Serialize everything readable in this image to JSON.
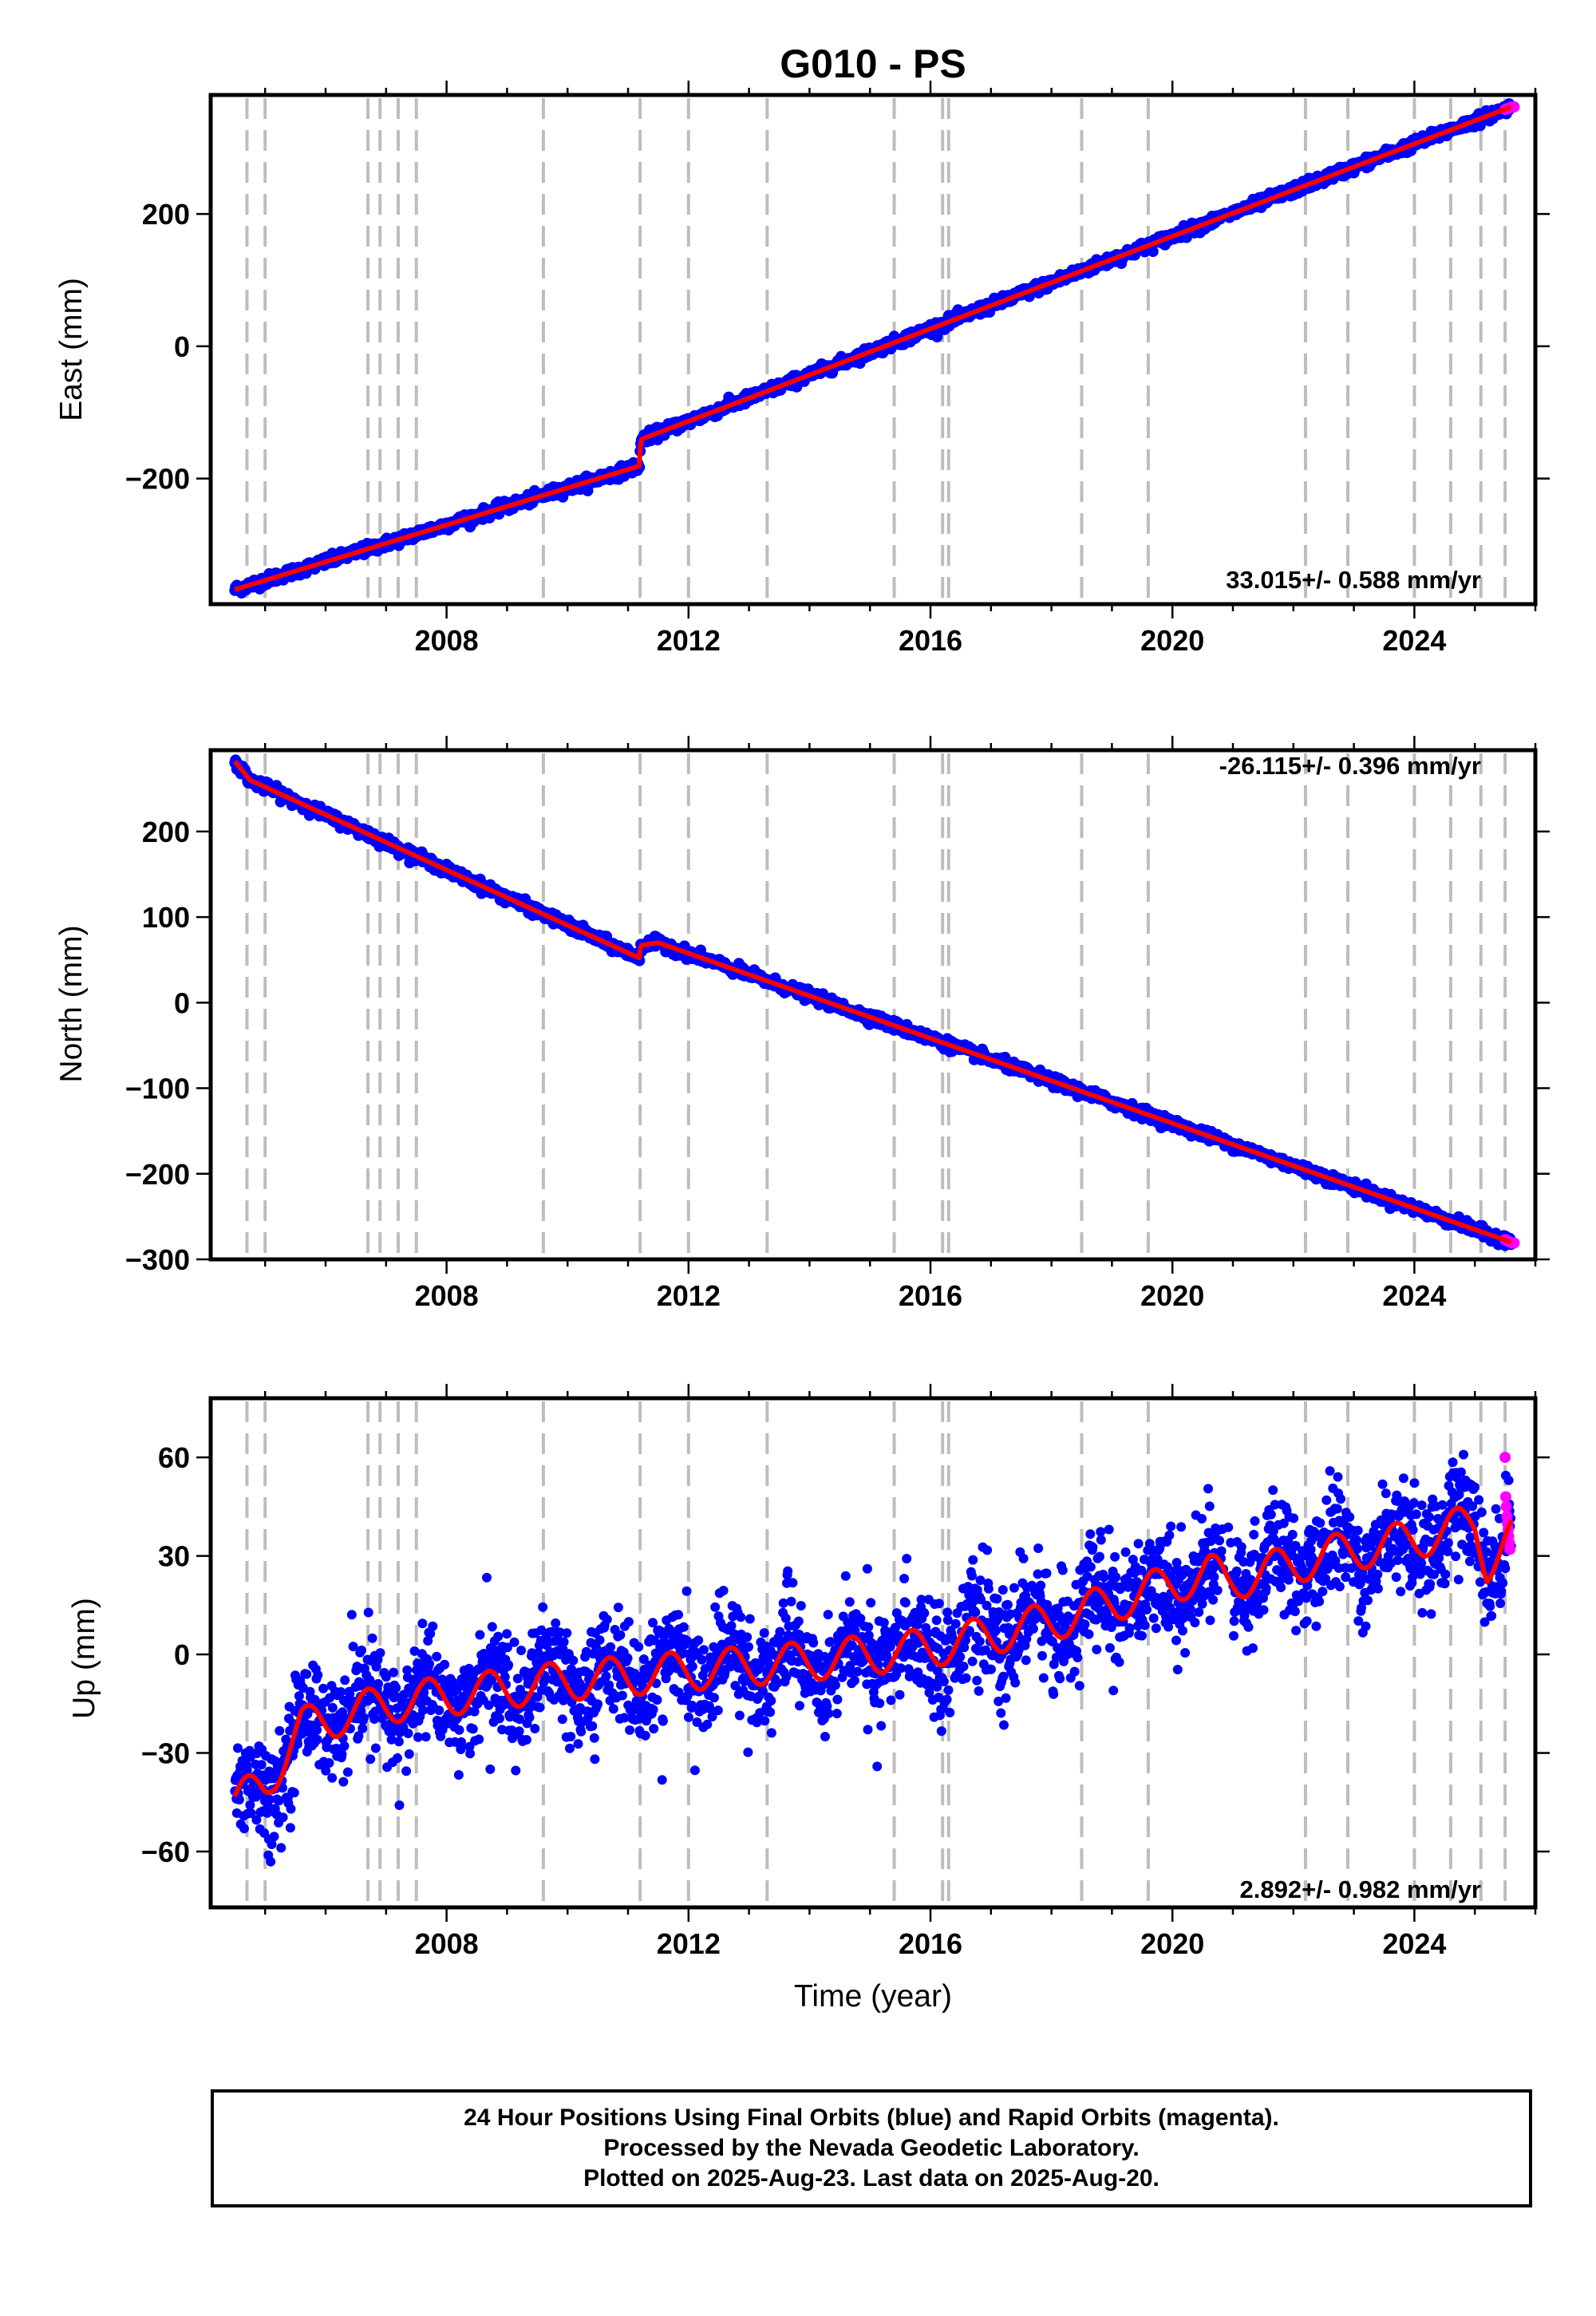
{
  "title": "G010 - PS",
  "colors": {
    "final_orbits": "#0000ff",
    "rapid_orbits": "#ff00ff",
    "model_fit": "#ff0000",
    "event_lines": "#bdbdbd",
    "frame": "#000000"
  },
  "footer": {
    "line1": "24 Hour Positions Using Final Orbits (blue) and Rapid Orbits (magenta).",
    "line2": "Processed by the Nevada Geodetic Laboratory.",
    "line3": "Plotted on 2025-Aug-23. Last data on 2025-Aug-20."
  },
  "chart_data": [
    {
      "type": "scatter",
      "ylabel": "East (mm)",
      "xlabel": "",
      "rate_text": "33.015+/- 0.588 mm/yr",
      "rate_position": "bottom-right",
      "xlim": [
        2004.1,
        2026.0
      ],
      "ylim": [
        -390,
        380
      ],
      "xticks": [
        2008,
        2012,
        2016,
        2020,
        2024
      ],
      "yticks": [
        -200,
        0,
        200
      ],
      "ytick_labels": [
        "−200",
        "0",
        "200"
      ],
      "event_lines_x": [
        2004.7,
        2005.0,
        2006.7,
        2006.9,
        2007.2,
        2007.5,
        2009.6,
        2011.2,
        2012.0,
        2013.3,
        2015.4,
        2016.2,
        2016.3,
        2018.5,
        2019.6,
        2022.2,
        2022.9,
        2024.0,
        2024.6,
        2025.1,
        2025.5
      ],
      "offsets": [
        {
          "x": 2011.2,
          "jump": 40
        }
      ],
      "noise_mm": 4,
      "series": [
        {
          "role": "final",
          "color": "#0000ff",
          "trend": [
            [
              2004.5,
              -368
            ],
            [
              2011.19,
              -181
            ],
            [
              2011.21,
              -141
            ],
            [
              2025.6,
              362
            ]
          ]
        },
        {
          "role": "rapid",
          "color": "#ff00ff",
          "points": [
            [
              2025.5,
              358
            ],
            [
              2025.53,
              359
            ],
            [
              2025.56,
              360
            ],
            [
              2025.59,
              361
            ],
            [
              2025.62,
              362
            ],
            [
              2025.65,
              362
            ]
          ]
        },
        {
          "role": "model",
          "color": "#ff0000",
          "trend": [
            [
              2004.5,
              -368
            ],
            [
              2011.19,
              -181
            ],
            [
              2011.21,
              -141
            ],
            [
              2025.6,
              362
            ]
          ]
        }
      ]
    },
    {
      "type": "scatter",
      "ylabel": "North (mm)",
      "xlabel": "",
      "rate_text": "-26.115+/- 0.396 mm/yr",
      "rate_position": "top-right",
      "xlim": [
        2004.1,
        2026.0
      ],
      "ylim": [
        -300,
        295
      ],
      "xticks": [
        2008,
        2012,
        2016,
        2020,
        2024
      ],
      "yticks": [
        -300,
        -200,
        -100,
        0,
        100,
        200
      ],
      "ytick_labels": [
        "−300",
        "−200",
        "−100",
        "0",
        "100",
        "200"
      ],
      "event_lines_x": [
        2004.7,
        2005.0,
        2006.7,
        2006.9,
        2007.2,
        2007.5,
        2009.6,
        2011.2,
        2012.0,
        2013.3,
        2015.4,
        2016.2,
        2016.3,
        2018.5,
        2019.6,
        2022.2,
        2022.9,
        2024.0,
        2024.6,
        2025.1,
        2025.5
      ],
      "offsets": [
        {
          "x": 2011.2,
          "jump": 15
        }
      ],
      "noise_mm": 3,
      "series": [
        {
          "role": "final",
          "color": "#0000ff",
          "trend": [
            [
              2004.5,
              282
            ],
            [
              2004.75,
              260
            ],
            [
              2011.19,
              52
            ],
            [
              2011.21,
              67
            ],
            [
              2011.5,
              70
            ],
            [
              2025.6,
              -280
            ]
          ]
        },
        {
          "role": "rapid",
          "color": "#ff00ff",
          "points": [
            [
              2025.5,
              -277
            ],
            [
              2025.53,
              -278
            ],
            [
              2025.56,
              -279
            ],
            [
              2025.59,
              -280
            ],
            [
              2025.62,
              -281
            ],
            [
              2025.65,
              -281
            ]
          ]
        },
        {
          "role": "model",
          "color": "#ff0000",
          "trend": [
            [
              2004.5,
              282
            ],
            [
              2004.75,
              260
            ],
            [
              2011.19,
              52
            ],
            [
              2011.21,
              67
            ],
            [
              2011.5,
              70
            ],
            [
              2025.6,
              -280
            ]
          ]
        }
      ]
    },
    {
      "type": "scatter",
      "ylabel": "Up (mm)",
      "xlabel": "Time (year)",
      "rate_text": "2.892+/- 0.982 mm/yr",
      "rate_position": "bottom-right",
      "xlim": [
        2004.1,
        2026.0
      ],
      "ylim": [
        -77,
        78
      ],
      "xticks": [
        2008,
        2012,
        2016,
        2020,
        2024
      ],
      "yticks": [
        -60,
        -30,
        0,
        30,
        60
      ],
      "ytick_labels": [
        "−60",
        "−30",
        "0",
        "30",
        "60"
      ],
      "event_lines_x": [
        2004.7,
        2005.0,
        2006.7,
        2006.9,
        2007.2,
        2007.5,
        2009.6,
        2011.2,
        2012.0,
        2013.3,
        2015.4,
        2016.2,
        2016.3,
        2018.5,
        2019.6,
        2022.2,
        2022.9,
        2024.0,
        2024.6,
        2025.1,
        2025.5
      ],
      "noise_mm": 8,
      "series": [
        {
          "role": "final",
          "color": "#0000ff",
          "trend": [
            [
              2004.5,
              -45
            ],
            [
              2005.0,
              -40
            ],
            [
              2005.6,
              -22
            ],
            [
              2007.0,
              -15
            ],
            [
              2010.0,
              -8
            ],
            [
              2012.0,
              -5
            ],
            [
              2014.0,
              -2
            ],
            [
              2016.0,
              2
            ],
            [
              2018.0,
              10
            ],
            [
              2020.6,
              25
            ],
            [
              2020.9,
              22
            ],
            [
              2022.5,
              30
            ],
            [
              2024.0,
              35
            ],
            [
              2025.0,
              40
            ],
            [
              2025.2,
              28
            ],
            [
              2025.6,
              36
            ]
          ]
        },
        {
          "role": "rapid",
          "color": "#ff00ff",
          "points": [
            [
              2025.5,
              60
            ],
            [
              2025.51,
              48
            ],
            [
              2025.52,
              45
            ],
            [
              2025.53,
              42
            ],
            [
              2025.54,
              40
            ],
            [
              2025.55,
              38
            ],
            [
              2025.56,
              36
            ],
            [
              2025.57,
              34
            ],
            [
              2025.58,
              32
            ]
          ]
        },
        {
          "role": "model",
          "color": "#ff0000",
          "seasonal_amplitude": 6,
          "trend": [
            [
              2004.5,
              -45
            ],
            [
              2005.0,
              -40
            ],
            [
              2005.6,
              -22
            ],
            [
              2007.0,
              -15
            ],
            [
              2010.0,
              -8
            ],
            [
              2012.0,
              -5
            ],
            [
              2014.0,
              -2
            ],
            [
              2016.0,
              2
            ],
            [
              2018.0,
              10
            ],
            [
              2020.6,
              25
            ],
            [
              2020.9,
              22
            ],
            [
              2022.5,
              30
            ],
            [
              2024.0,
              35
            ],
            [
              2025.0,
              40
            ],
            [
              2025.2,
              28
            ],
            [
              2025.6,
              36
            ]
          ]
        }
      ]
    }
  ]
}
